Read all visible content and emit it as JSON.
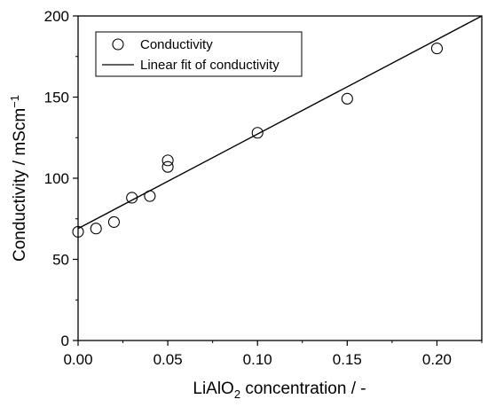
{
  "chart_data": {
    "type": "scatter",
    "xlabel": {
      "main": "LiAlO",
      "sub": "2",
      "rest": " concentration / -"
    },
    "ylabel": {
      "main": "Conductivity / mScm",
      "sup": "−1"
    },
    "xlim": [
      0,
      0.225
    ],
    "ylim": [
      0,
      200
    ],
    "xticks": [
      {
        "value": 0,
        "label": "0.00"
      },
      {
        "value": 0.05,
        "label": "0.05"
      },
      {
        "value": 0.1,
        "label": "0.10"
      },
      {
        "value": 0.15,
        "label": "0.15"
      },
      {
        "value": 0.2,
        "label": "0.20"
      }
    ],
    "yticks": [
      {
        "value": 0,
        "label": "0"
      },
      {
        "value": 50,
        "label": "50"
      },
      {
        "value": 100,
        "label": "100"
      },
      {
        "value": 150,
        "label": "150"
      },
      {
        "value": 200,
        "label": "200"
      }
    ],
    "grid": false,
    "legend_position": "top-left",
    "series": [
      {
        "name": "Conductivity",
        "kind": "points",
        "marker": "open-circle",
        "points": [
          {
            "x": 0.0,
            "y": 67
          },
          {
            "x": 0.01,
            "y": 69
          },
          {
            "x": 0.02,
            "y": 73
          },
          {
            "x": 0.03,
            "y": 88
          },
          {
            "x": 0.04,
            "y": 89
          },
          {
            "x": 0.05,
            "y": 107
          },
          {
            "x": 0.05,
            "y": 111
          },
          {
            "x": 0.1,
            "y": 128
          },
          {
            "x": 0.15,
            "y": 149
          },
          {
            "x": 0.2,
            "y": 180
          }
        ]
      },
      {
        "name": "Linear fit of conductivity",
        "kind": "line",
        "points": [
          {
            "x": 0.0,
            "y": 69
          },
          {
            "x": 0.225,
            "y": 200
          }
        ]
      }
    ]
  }
}
